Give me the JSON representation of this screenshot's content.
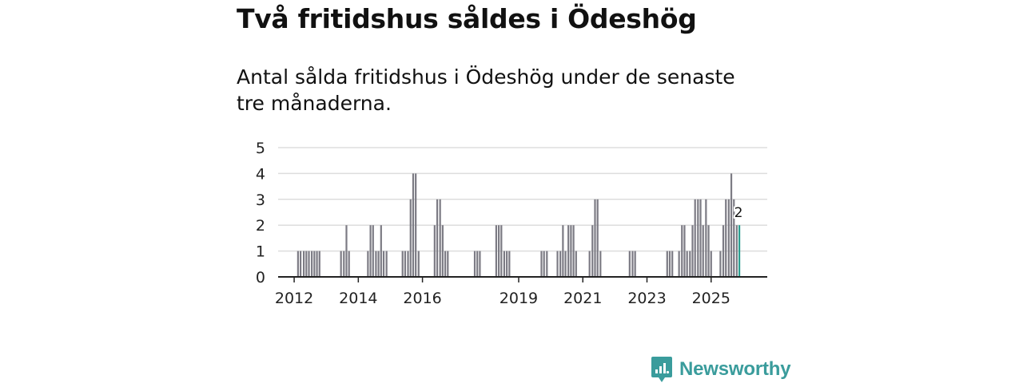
{
  "header": {
    "title": "Två fritidshus såldes i Ödeshög",
    "subtitle": "Antal sålda fritidshus i Ödeshög under de senaste tre månaderna."
  },
  "brand": {
    "name": "Newsworthy",
    "color": "#3a9c9c"
  },
  "colors": {
    "bar": "#7c7b84",
    "highlight": "#2a9d8f",
    "grid": "#dddddd",
    "axis": "#222222"
  },
  "chart_data": {
    "type": "bar",
    "title": "Antal sålda fritidshus i Ödeshög under de senaste tre månaderna.",
    "xlabel": "",
    "ylabel": "",
    "ylim": [
      0,
      5
    ],
    "yticks": [
      0,
      1,
      2,
      3,
      4,
      5
    ],
    "xticks": [
      "2012",
      "2014",
      "2016",
      "2019",
      "2021",
      "2023",
      "2025"
    ],
    "x_start": 2011.5,
    "x_end": 2026.75,
    "bars": [
      {
        "x": 2012.12,
        "value": 1
      },
      {
        "x": 2012.2,
        "value": 1
      },
      {
        "x": 2012.3,
        "value": 1
      },
      {
        "x": 2012.38,
        "value": 1
      },
      {
        "x": 2012.46,
        "value": 1
      },
      {
        "x": 2012.55,
        "value": 1
      },
      {
        "x": 2012.63,
        "value": 1
      },
      {
        "x": 2012.71,
        "value": 1
      },
      {
        "x": 2012.79,
        "value": 1
      },
      {
        "x": 2013.46,
        "value": 1
      },
      {
        "x": 2013.55,
        "value": 1
      },
      {
        "x": 2013.63,
        "value": 2
      },
      {
        "x": 2013.71,
        "value": 1
      },
      {
        "x": 2014.3,
        "value": 1
      },
      {
        "x": 2014.38,
        "value": 2
      },
      {
        "x": 2014.46,
        "value": 2
      },
      {
        "x": 2014.55,
        "value": 1
      },
      {
        "x": 2014.63,
        "value": 1
      },
      {
        "x": 2014.71,
        "value": 2
      },
      {
        "x": 2014.79,
        "value": 1
      },
      {
        "x": 2014.88,
        "value": 1
      },
      {
        "x": 2015.38,
        "value": 1
      },
      {
        "x": 2015.46,
        "value": 1
      },
      {
        "x": 2015.55,
        "value": 1
      },
      {
        "x": 2015.63,
        "value": 3
      },
      {
        "x": 2015.71,
        "value": 4
      },
      {
        "x": 2015.79,
        "value": 4
      },
      {
        "x": 2015.88,
        "value": 1
      },
      {
        "x": 2016.38,
        "value": 2
      },
      {
        "x": 2016.46,
        "value": 3
      },
      {
        "x": 2016.55,
        "value": 3
      },
      {
        "x": 2016.63,
        "value": 2
      },
      {
        "x": 2016.71,
        "value": 1
      },
      {
        "x": 2016.79,
        "value": 1
      },
      {
        "x": 2017.63,
        "value": 1
      },
      {
        "x": 2017.71,
        "value": 1
      },
      {
        "x": 2017.79,
        "value": 1
      },
      {
        "x": 2018.3,
        "value": 2
      },
      {
        "x": 2018.38,
        "value": 2
      },
      {
        "x": 2018.46,
        "value": 2
      },
      {
        "x": 2018.55,
        "value": 1
      },
      {
        "x": 2018.63,
        "value": 1
      },
      {
        "x": 2018.71,
        "value": 1
      },
      {
        "x": 2019.71,
        "value": 1
      },
      {
        "x": 2019.79,
        "value": 1
      },
      {
        "x": 2019.88,
        "value": 1
      },
      {
        "x": 2020.21,
        "value": 1
      },
      {
        "x": 2020.3,
        "value": 1
      },
      {
        "x": 2020.38,
        "value": 2
      },
      {
        "x": 2020.46,
        "value": 1
      },
      {
        "x": 2020.55,
        "value": 2
      },
      {
        "x": 2020.63,
        "value": 2
      },
      {
        "x": 2020.71,
        "value": 2
      },
      {
        "x": 2020.79,
        "value": 1
      },
      {
        "x": 2021.21,
        "value": 1
      },
      {
        "x": 2021.3,
        "value": 2
      },
      {
        "x": 2021.38,
        "value": 3
      },
      {
        "x": 2021.46,
        "value": 3
      },
      {
        "x": 2021.55,
        "value": 1
      },
      {
        "x": 2022.46,
        "value": 1
      },
      {
        "x": 2022.55,
        "value": 1
      },
      {
        "x": 2022.63,
        "value": 1
      },
      {
        "x": 2023.63,
        "value": 1
      },
      {
        "x": 2023.71,
        "value": 1
      },
      {
        "x": 2023.79,
        "value": 1
      },
      {
        "x": 2024.0,
        "value": 1
      },
      {
        "x": 2024.09,
        "value": 2
      },
      {
        "x": 2024.17,
        "value": 2
      },
      {
        "x": 2024.25,
        "value": 1
      },
      {
        "x": 2024.34,
        "value": 1
      },
      {
        "x": 2024.42,
        "value": 2
      },
      {
        "x": 2024.5,
        "value": 3
      },
      {
        "x": 2024.59,
        "value": 3
      },
      {
        "x": 2024.67,
        "value": 3
      },
      {
        "x": 2024.75,
        "value": 2
      },
      {
        "x": 2024.84,
        "value": 3
      },
      {
        "x": 2024.92,
        "value": 2
      },
      {
        "x": 2025.0,
        "value": 1
      },
      {
        "x": 2025.29,
        "value": 1
      },
      {
        "x": 2025.38,
        "value": 2
      },
      {
        "x": 2025.46,
        "value": 3
      },
      {
        "x": 2025.55,
        "value": 3
      },
      {
        "x": 2025.63,
        "value": 4
      },
      {
        "x": 2025.71,
        "value": 3
      },
      {
        "x": 2025.8,
        "value": 2
      },
      {
        "x": 2025.88,
        "value": 2,
        "highlight": true,
        "label": "2"
      }
    ]
  }
}
